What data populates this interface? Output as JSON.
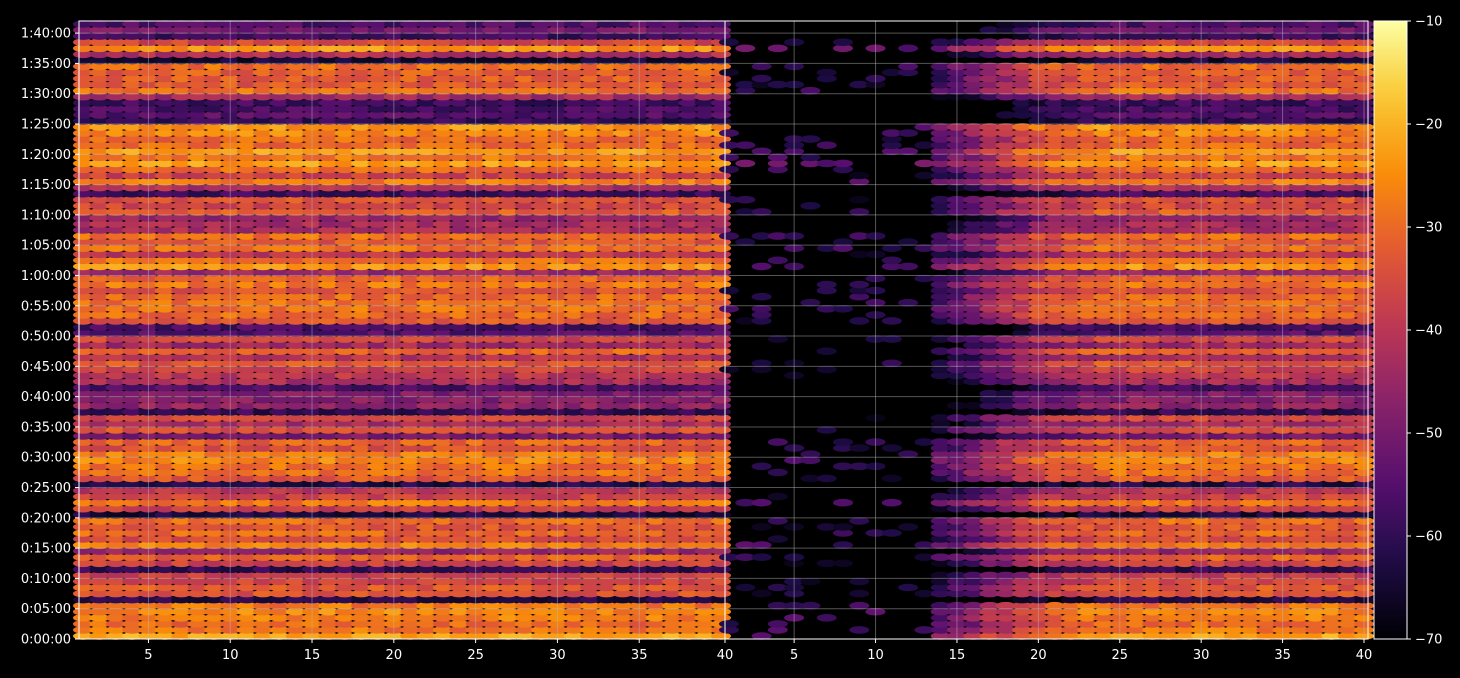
{
  "chart_data": {
    "type": "heatmap",
    "title": "",
    "xlabel": "",
    "ylabel": "",
    "grid": true,
    "panels": [
      {
        "name": "",
        "x_range": [
          1,
          40
        ],
        "x_ticks": [
          5,
          10,
          15,
          20,
          25,
          30,
          35
        ],
        "x_tick_labels": [
          "5",
          "10",
          "15",
          "20",
          "25",
          "30",
          "35"
        ],
        "profile": "uniform"
      },
      {
        "name": "",
        "x_range": [
          1,
          40
        ],
        "x_ticks": [
          5,
          10,
          15,
          20,
          25,
          30,
          35,
          40
        ],
        "x_tick_labels": [
          "5",
          "10",
          "15",
          "20",
          "25",
          "30",
          "35",
          "40"
        ],
        "profile": "attenuated-left"
      }
    ],
    "first_panel_end_label": "40",
    "y_range_minutes": [
      0,
      102
    ],
    "y_ticks_minutes": [
      0,
      5,
      10,
      15,
      20,
      25,
      30,
      35,
      40,
      45,
      50,
      55,
      60,
      65,
      70,
      75,
      80,
      85,
      90,
      95,
      100
    ],
    "y_tick_labels": [
      "0:00:00",
      "0:05:00",
      "0:10:00",
      "0:15:00",
      "0:20:00",
      "0:25:00",
      "0:30:00",
      "0:35:00",
      "0:40:00",
      "0:45:00",
      "0:50:00",
      "0:55:00",
      "1:00:00",
      "1:05:00",
      "1:10:00",
      "1:15:00",
      "1:20:00",
      "1:25:00",
      "1:30:00",
      "1:35:00",
      "1:40:00"
    ],
    "row_levels_db": [
      -22,
      -28,
      -30,
      -27,
      -26,
      -28,
      -62,
      -34,
      -33,
      -36,
      -38,
      -60,
      -37,
      -31,
      -46,
      -27,
      -35,
      -30,
      -33,
      -29,
      -63,
      -38,
      -28,
      -37,
      -40,
      -62,
      -33,
      -29,
      -29,
      -26,
      -27,
      -34,
      -31,
      -50,
      -34,
      -43,
      -36,
      -60,
      -46,
      -48,
      -49,
      -56,
      -43,
      -40,
      -37,
      -33,
      -41,
      -31,
      -44,
      -36,
      -55,
      -57,
      -33,
      -30,
      -29,
      -29,
      -30,
      -34,
      -28,
      -31,
      -45,
      -24,
      -29,
      -40,
      -29,
      -33,
      -29,
      -43,
      -43,
      -46,
      -32,
      -36,
      -34,
      -58,
      -42,
      -27,
      -37,
      -30,
      -23,
      -28,
      -23,
      -30,
      -30,
      -26,
      -24,
      -60,
      -55,
      -57,
      -58,
      -44,
      -29,
      -33,
      -32,
      -32,
      -29,
      -64,
      -42,
      -24,
      -36,
      -58,
      -50,
      -56
    ],
    "colorbar": {
      "colormap": "inferno",
      "min": -70,
      "max": -10,
      "ticks": [
        -10,
        -20,
        -30,
        -40,
        -50,
        -60,
        -70
      ],
      "tick_labels": [
        "−10",
        "−20",
        "−30",
        "−40",
        "−50",
        "−60",
        "−70"
      ]
    },
    "colors": {
      "background": "#000000",
      "axis": "#ffffff",
      "grid": "#bdbdbd"
    }
  }
}
